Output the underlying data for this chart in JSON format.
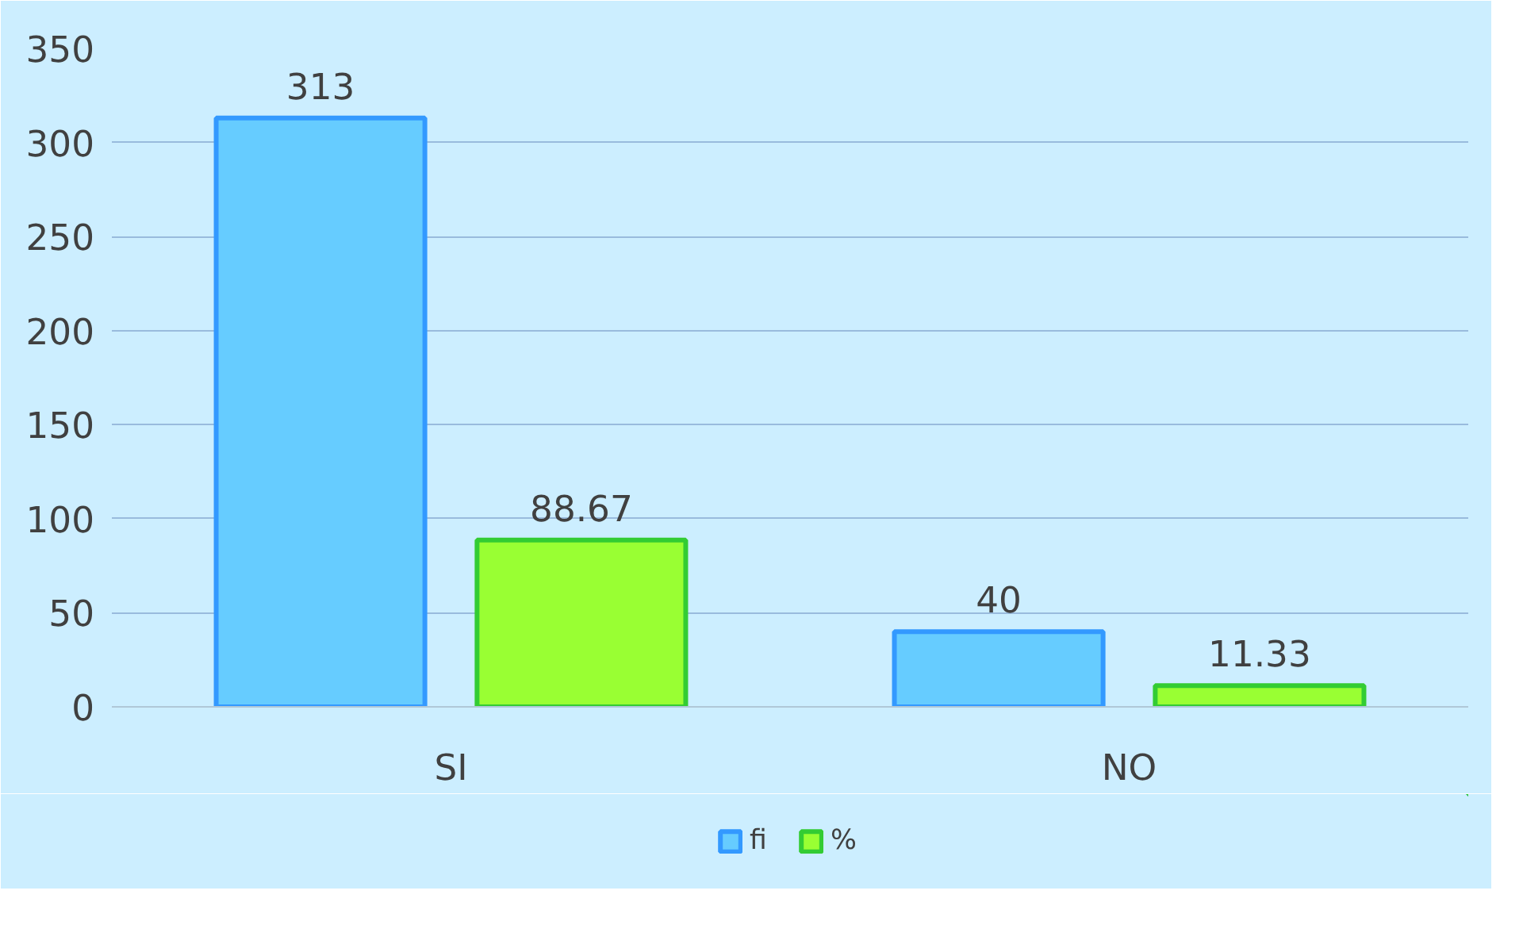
{
  "chart_data": {
    "type": "bar",
    "categories": [
      "SI",
      "NO"
    ],
    "series": [
      {
        "name": "fi",
        "color": "#66ccff",
        "values": [
          313,
          40
        ]
      },
      {
        "name": "%",
        "color": "#99ff33",
        "values": [
          88.67,
          11.33
        ]
      }
    ],
    "ylim": [
      0,
      350
    ],
    "yticks": [
      0,
      50,
      100,
      150,
      200,
      250,
      300,
      350
    ],
    "grid": "y",
    "legend": "bottom",
    "data_labels": true
  }
}
